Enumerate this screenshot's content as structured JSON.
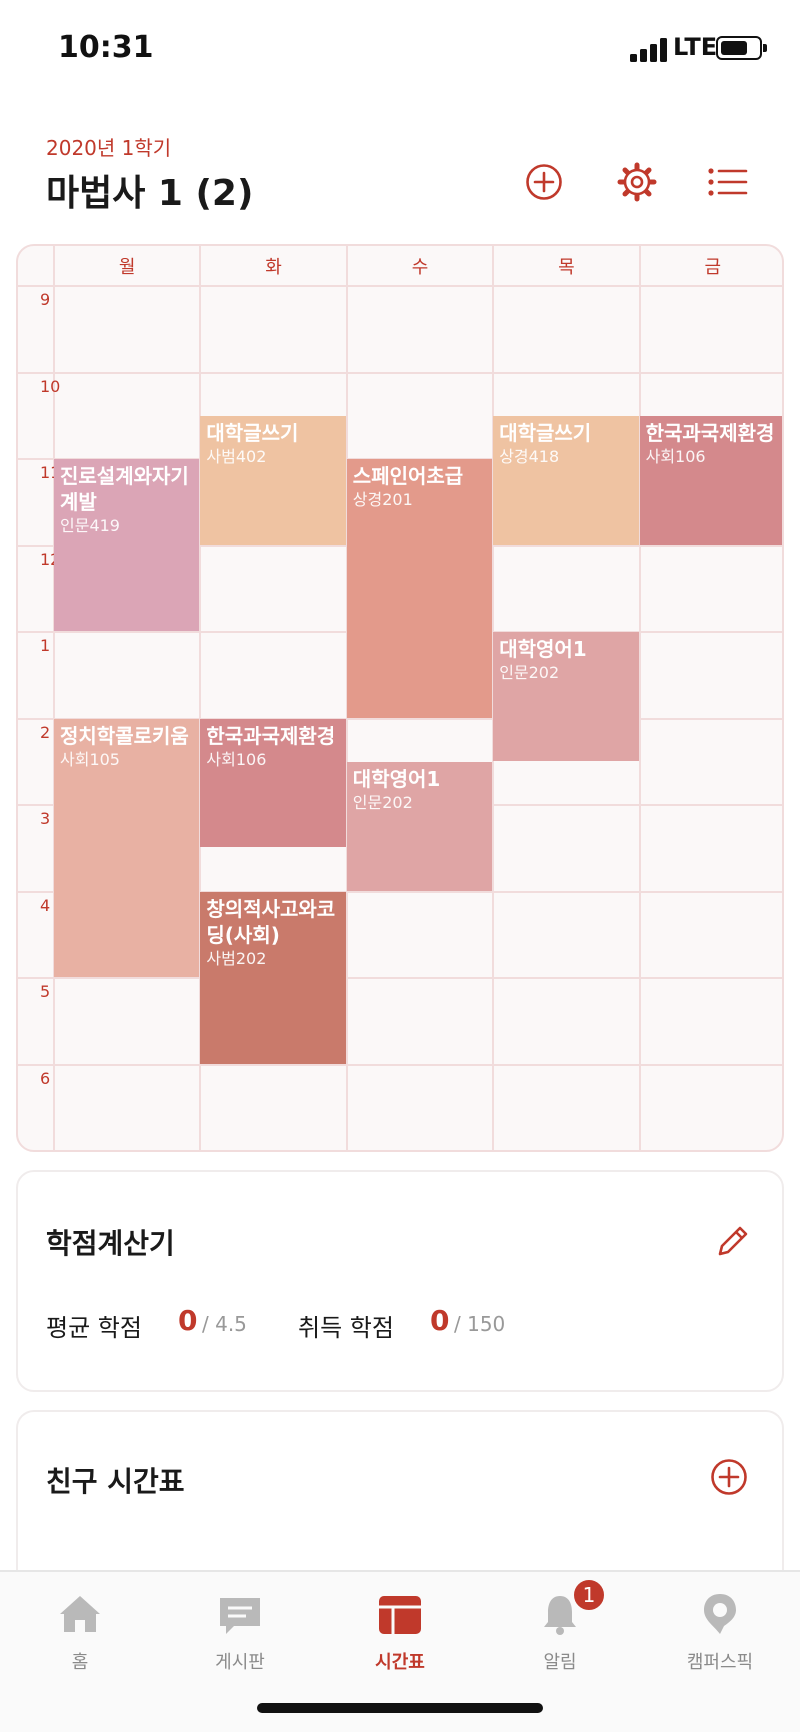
{
  "status": {
    "time": "10:31",
    "network": "LTE"
  },
  "header": {
    "semester": "2020년 1학기",
    "title": "마법사 1 (2)",
    "icons": [
      "plus-circle-icon",
      "gear-icon",
      "list-icon"
    ]
  },
  "timetable": {
    "days": [
      "월",
      "화",
      "수",
      "목",
      "금"
    ],
    "hours": [
      "9",
      "10",
      "11",
      "12",
      "1",
      "2",
      "3",
      "4",
      "5",
      "6"
    ],
    "courses": [
      {
        "name": "진로설계와자기계발",
        "room": "인문419",
        "day": 0,
        "start": 11,
        "end": 13,
        "color": "#dba5b6"
      },
      {
        "name": "정치학콜로키움",
        "room": "사회105",
        "day": 0,
        "start": 14,
        "end": 17,
        "color": "#e8b1a3"
      },
      {
        "name": "대학글쓰기",
        "room": "사범402",
        "day": 1,
        "start": 10.5,
        "end": 12,
        "color": "#efc3a2"
      },
      {
        "name": "한국과국제환경",
        "room": "사회106",
        "day": 1,
        "start": 14,
        "end": 15.5,
        "color": "#d4898c"
      },
      {
        "name": "창의적사고와코딩(사회)",
        "room": "사범202",
        "day": 1,
        "start": 16,
        "end": 18,
        "color": "#c97a6b"
      },
      {
        "name": "스페인어초급",
        "room": "상경201",
        "day": 2,
        "start": 11,
        "end": 14,
        "color": "#e39a8b"
      },
      {
        "name": "대학영어1",
        "room": "인문202",
        "day": 2,
        "start": 14.5,
        "end": 16,
        "color": "#dfa5a5"
      },
      {
        "name": "대학글쓰기",
        "room": "상경418",
        "day": 3,
        "start": 10.5,
        "end": 12,
        "color": "#efc3a2"
      },
      {
        "name": "대학영어1",
        "room": "인문202",
        "day": 3,
        "start": 13,
        "end": 14.5,
        "color": "#dfa5a5"
      },
      {
        "name": "한국과국제환경",
        "room": "사회106",
        "day": 4,
        "start": 10.5,
        "end": 12,
        "color": "#d4898c"
      }
    ]
  },
  "credit_calc": {
    "title": "학점계산기",
    "avg_label": "평균 학점",
    "avg_value": "0",
    "avg_max": "/ 4.5",
    "earned_label": "취득 학점",
    "earned_value": "0",
    "earned_max": "/ 150"
  },
  "friends": {
    "title": "친구 시간표"
  },
  "tabbar": {
    "tabs": [
      {
        "label": "홈",
        "icon": "home-icon"
      },
      {
        "label": "게시판",
        "icon": "chat-icon"
      },
      {
        "label": "시간표",
        "icon": "calendar-icon",
        "active": true
      },
      {
        "label": "알림",
        "icon": "bell-icon",
        "badge": "1"
      },
      {
        "label": "캠퍼스픽",
        "icon": "campuspick-icon"
      }
    ]
  },
  "colors": {
    "accent": "#c0392b",
    "grid": "#f1dcdc"
  }
}
